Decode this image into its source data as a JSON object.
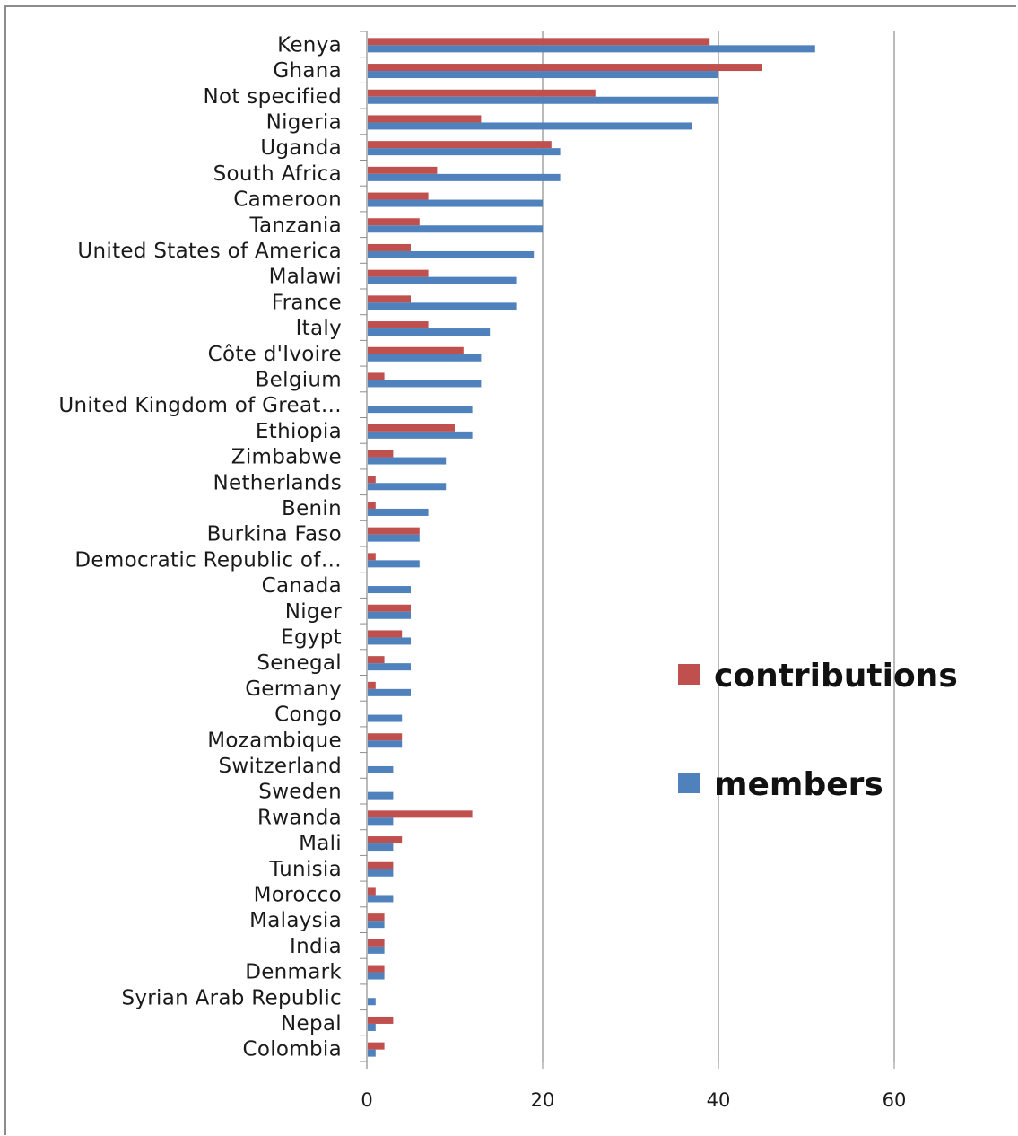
{
  "chart_data": {
    "type": "bar",
    "orientation": "horizontal",
    "categories": [
      "Kenya",
      "Ghana",
      "Not specified",
      "Nigeria",
      "Uganda",
      "South Africa",
      "Cameroon",
      "Tanzania",
      "United States of America",
      "Malawi",
      "France",
      "Italy",
      "Côte d'Ivoire",
      "Belgium",
      "United Kingdom of Great…",
      "Ethiopia",
      "Zimbabwe",
      "Netherlands",
      "Benin",
      "Burkina Faso",
      "Democratic Republic of…",
      "Canada",
      "Niger",
      "Egypt",
      "Senegal",
      "Germany",
      "Congo",
      "Mozambique",
      "Switzerland",
      "Sweden",
      "Rwanda",
      "Mali",
      "Tunisia",
      "Morocco",
      "Malaysia",
      "India",
      "Denmark",
      "Syrian Arab Republic",
      "Nepal",
      "Colombia"
    ],
    "series": [
      {
        "name": "contributions",
        "color": "#c0504d",
        "values": [
          39,
          45,
          26,
          13,
          21,
          8,
          7,
          6,
          5,
          7,
          5,
          7,
          11,
          2,
          0,
          10,
          3,
          1,
          1,
          6,
          1,
          0,
          5,
          4,
          2,
          1,
          0,
          4,
          0,
          0,
          12,
          4,
          3,
          1,
          2,
          2,
          2,
          0,
          3,
          2
        ]
      },
      {
        "name": "members",
        "color": "#4f81bd",
        "values": [
          51,
          40,
          40,
          37,
          22,
          22,
          20,
          20,
          19,
          17,
          17,
          14,
          13,
          13,
          12,
          12,
          9,
          9,
          7,
          6,
          6,
          5,
          5,
          5,
          5,
          5,
          4,
          4,
          3,
          3,
          3,
          3,
          3,
          3,
          2,
          2,
          2,
          1,
          1,
          1
        ]
      }
    ],
    "xlim": [
      0,
      60
    ],
    "xticks": [
      0,
      20,
      40,
      60
    ],
    "grid": "vertical",
    "legend_position": "right"
  }
}
